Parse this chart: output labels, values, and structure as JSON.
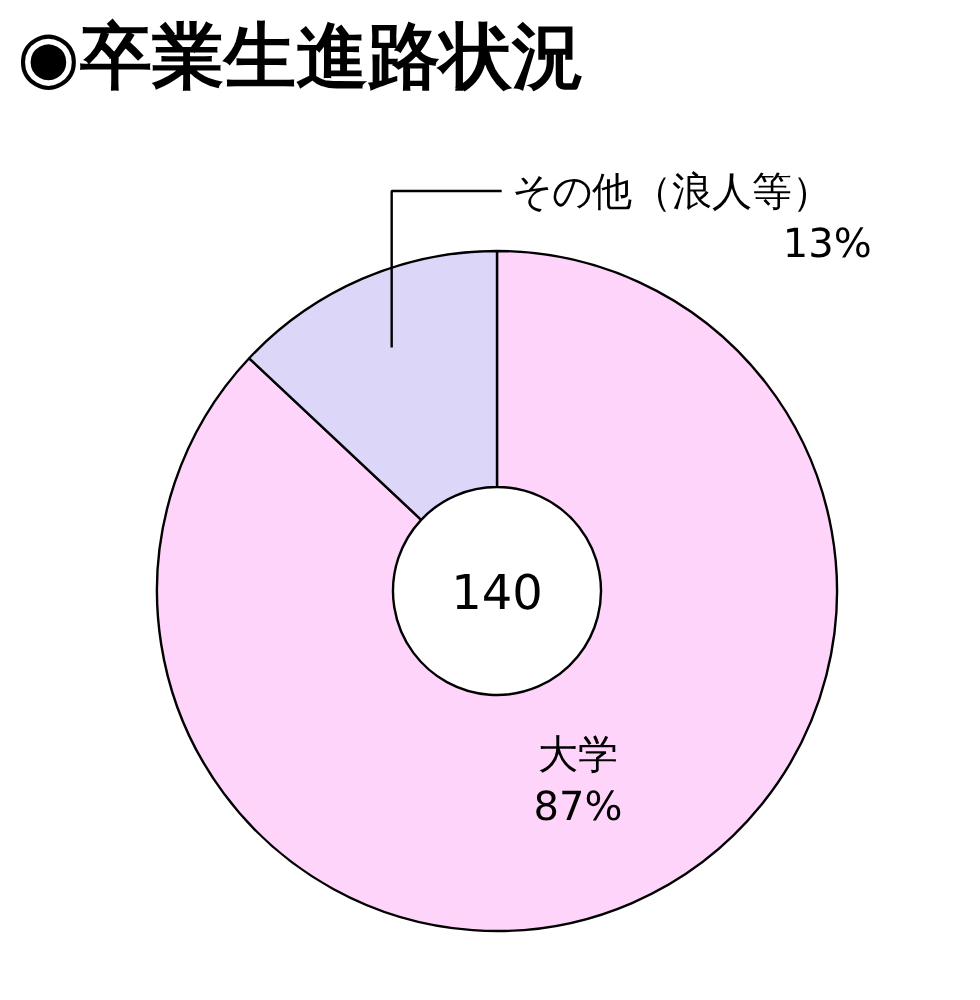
{
  "chart_data": {
    "type": "donut",
    "title": "◉卒業生進路状況",
    "categories": [
      "大学",
      "その他（浪人等）"
    ],
    "values": [
      87,
      13
    ],
    "colors": [
      "#ffd4fa",
      "#dcd6f8"
    ],
    "value_labels": [
      "87%",
      "13%"
    ],
    "annotations": [
      "140"
    ]
  }
}
